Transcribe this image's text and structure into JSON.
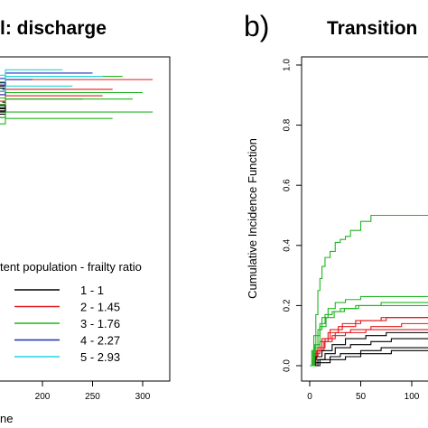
{
  "chart_data": [
    {
      "type": "line",
      "step": true,
      "title": "l: discharge",
      "xlabel": "ne",
      "ylabel": "",
      "x_ticks": [
        200,
        250,
        300
      ],
      "legend": {
        "title": "tent population - frailty ratio",
        "placement": "lower-middle",
        "entries": [
          {
            "label": "1 - 1",
            "color": "#000000"
          },
          {
            "label": "2 - 1.45",
            "color": "#e31a1c"
          },
          {
            "label": "3 - 1.76",
            "color": "#22b422"
          },
          {
            "label": "4 - 2.27",
            "color": "#1f2fb4"
          },
          {
            "label": "5 - 2.93",
            "color": "#20d6e0"
          }
        ]
      },
      "series": [
        {
          "color": "#000000",
          "y_end": [
            0.92,
            0.91,
            0.86,
            0.85,
            0.84,
            0.83
          ],
          "x_end": [
            110,
            150,
            160,
            140,
            130,
            120
          ]
        },
        {
          "color": "#e31a1c",
          "y_end": [
            0.93,
            0.9,
            0.88,
            0.87
          ],
          "x_end": [
            310,
            270,
            260,
            240
          ]
        },
        {
          "color": "#22b422",
          "y_end": [
            0.94,
            0.89,
            0.87,
            0.83,
            0.81
          ],
          "x_end": [
            280,
            300,
            290,
            310,
            270
          ]
        },
        {
          "color": "#1f2fb4",
          "y_end": [
            0.95,
            0.93,
            0.9
          ],
          "x_end": [
            250,
            190,
            160
          ]
        },
        {
          "color": "#20d6e0",
          "y_end": [
            0.96,
            0.94,
            0.91
          ],
          "x_end": [
            220,
            260,
            230
          ]
        }
      ]
    },
    {
      "type": "line",
      "step": true,
      "title": "Transition",
      "panel_label": "b)",
      "ylabel": "Cumulative Incidence Function",
      "xlabel": "",
      "ylim": [
        0.0,
        1.0
      ],
      "y_ticks": [
        0.0,
        0.2,
        0.4,
        0.6,
        0.8,
        1.0
      ],
      "x_ticks": [
        0,
        50,
        100
      ],
      "grid": false,
      "series": [
        {
          "name": "1 - 1",
          "color": "#000000",
          "curves": [
            {
              "x": [
                0,
                5,
                10,
                20,
                30,
                50,
                70,
                90,
                130
              ],
              "y": [
                0,
                0.01,
                0.02,
                0.03,
                0.04,
                0.05,
                0.06,
                0.06,
                0.06
              ]
            },
            {
              "x": [
                0,
                8,
                15,
                25,
                40,
                60,
                80,
                130
              ],
              "y": [
                0,
                0.02,
                0.04,
                0.06,
                0.07,
                0.08,
                0.09,
                0.09
              ]
            },
            {
              "x": [
                0,
                6,
                12,
                22,
                35,
                55,
                75,
                130
              ],
              "y": [
                0,
                0.03,
                0.05,
                0.07,
                0.09,
                0.1,
                0.11,
                0.11
              ]
            },
            {
              "x": [
                0,
                10,
                20,
                35,
                50,
                80,
                130
              ],
              "y": [
                0,
                0.01,
                0.02,
                0.03,
                0.04,
                0.05,
                0.05
              ]
            }
          ]
        },
        {
          "name": "2 - 1.45",
          "color": "#e31a1c",
          "curves": [
            {
              "x": [
                0,
                4,
                8,
                15,
                25,
                40,
                60,
                90,
                130
              ],
              "y": [
                0,
                0.03,
                0.06,
                0.09,
                0.11,
                0.12,
                0.13,
                0.14,
                0.14
              ]
            },
            {
              "x": [
                0,
                5,
                10,
                18,
                28,
                45,
                70,
                130
              ],
              "y": [
                0,
                0.04,
                0.08,
                0.11,
                0.13,
                0.15,
                0.16,
                0.16
              ]
            },
            {
              "x": [
                0,
                3,
                7,
                14,
                22,
                35,
                55,
                85,
                130
              ],
              "y": [
                0,
                0.02,
                0.05,
                0.08,
                0.1,
                0.11,
                0.12,
                0.12,
                0.12
              ]
            },
            {
              "x": [
                0,
                6,
                12,
                20,
                32,
                50,
                75,
                130
              ],
              "y": [
                0,
                0.05,
                0.09,
                0.12,
                0.14,
                0.15,
                0.16,
                0.17
              ]
            }
          ]
        },
        {
          "name": "3 - 1.76",
          "color": "#22b422",
          "curves": [
            {
              "x": [
                0,
                2,
                4,
                6,
                8,
                10,
                12,
                15,
                20,
                25,
                30,
                35,
                40,
                50,
                60,
                70,
                80,
                130
              ],
              "y": [
                0,
                0.05,
                0.1,
                0.17,
                0.25,
                0.29,
                0.33,
                0.36,
                0.38,
                0.41,
                0.42,
                0.43,
                0.45,
                0.48,
                0.5,
                0.5,
                0.5,
                0.5
              ]
            },
            {
              "x": [
                0,
                4,
                8,
                12,
                18,
                25,
                35,
                50,
                70,
                130
              ],
              "y": [
                0,
                0.06,
                0.12,
                0.16,
                0.19,
                0.21,
                0.22,
                0.23,
                0.23,
                0.23
              ]
            },
            {
              "x": [
                0,
                3,
                6,
                10,
                15,
                22,
                30,
                45,
                65,
                130
              ],
              "y": [
                0,
                0.05,
                0.1,
                0.14,
                0.17,
                0.18,
                0.19,
                0.2,
                0.2,
                0.2
              ]
            },
            {
              "x": [
                0,
                5,
                10,
                16,
                24,
                34,
                48,
                70,
                130
              ],
              "y": [
                0,
                0.07,
                0.13,
                0.16,
                0.18,
                0.19,
                0.2,
                0.21,
                0.21
              ]
            }
          ]
        }
      ]
    }
  ]
}
